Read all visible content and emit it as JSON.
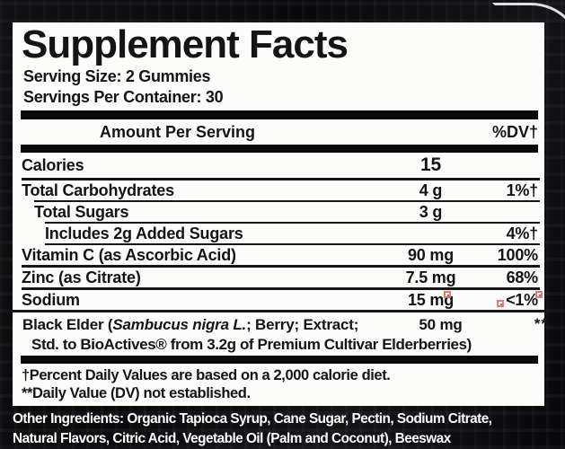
{
  "colors": {
    "panel_bg": "#fcfcfa",
    "text": "#141414",
    "bars": "#0a0a0a",
    "outer_bg": "#0c0c10",
    "outer_text": "#ffffff",
    "artifact_red": "#d6605c"
  },
  "title": "Supplement Facts",
  "serving": {
    "size": "Serving Size: 2 Gummies",
    "per_container": "Servings Per Container: 30"
  },
  "header": {
    "amount_label": "Amount Per Serving",
    "dv_label": "%DV†"
  },
  "rows": [
    {
      "name": "Calories",
      "amount": "15",
      "dv": "",
      "indent": 0,
      "sep": "none",
      "emphasis": true
    },
    {
      "name": "Total Carbohydrates",
      "amount": "4 g",
      "dv": "1%†",
      "indent": 0,
      "sep": "medium"
    },
    {
      "name": "Total Sugars",
      "amount": "3 g",
      "dv": "",
      "indent": 1,
      "sep": "thin"
    },
    {
      "name": "Includes 2g Added Sugars",
      "amount": "",
      "dv": "4%†",
      "indent": 2,
      "sep": "thin"
    },
    {
      "name": "Vitamin C (as Ascorbic Acid)",
      "amount": "90 mg",
      "dv": "100%",
      "indent": 0,
      "sep": "thin"
    },
    {
      "name": "Zinc (as Citrate)",
      "amount": "7.5 mg",
      "dv": "68%",
      "indent": 0,
      "sep": "medium"
    },
    {
      "name": "Sodium",
      "amount": "15 mg",
      "dv": "<1%",
      "indent": 0,
      "sep": "medium"
    }
  ],
  "elder_row": {
    "name_prefix": "Black Elder (",
    "name_italic": "Sambucus nigra L.",
    "name_suffix": "; Berry; Extract;",
    "amount": "50 mg",
    "dv": "**",
    "line2": "Std. to BioActives® from 3.2g of Premium Cultivar Elderberries)"
  },
  "footnotes": [
    "†Percent Daily Values are based on a 2,000 calorie diet.",
    "**Daily Value (DV) not established."
  ],
  "other_ingredients": {
    "line1": "Other Ingredients:  Organic Tapioca Syrup, Cane Sugar, Pectin, Sodium Citrate,",
    "line2": "Natural Flavors, Citric Acid, Vegetable Oil (Palm and Coconut), Beeswax"
  }
}
